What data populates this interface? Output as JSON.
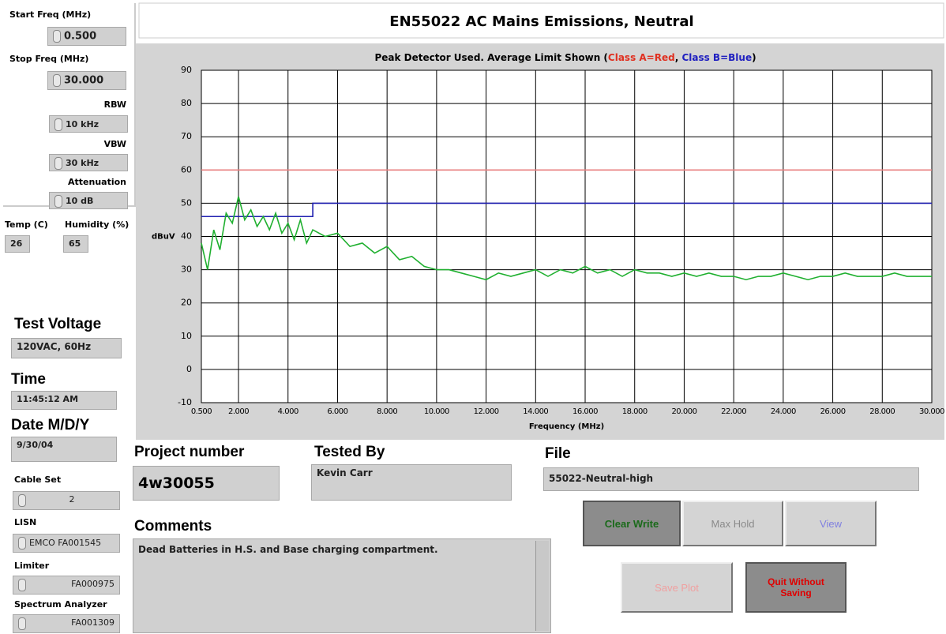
{
  "panel": {
    "start_freq": {
      "label": "Start Freq (MHz)",
      "value": "0.500"
    },
    "stop_freq": {
      "label": "Stop Freq (MHz)",
      "value": "30.000"
    },
    "rbw": {
      "label": "RBW",
      "value": "10 kHz"
    },
    "vbw": {
      "label": "VBW",
      "value": "30 kHz"
    },
    "attenuation": {
      "label": "Attenuation",
      "value": "10 dB"
    },
    "temp": {
      "label": "Temp (C)",
      "value": "26"
    },
    "humidity": {
      "label": "Humidity (%)",
      "value": "65"
    },
    "test_voltage": {
      "label": "Test Voltage",
      "value": "120VAC, 60Hz"
    },
    "time": {
      "label": "Time",
      "value": "11:45:12 AM"
    },
    "date": {
      "label": "Date M/D/Y",
      "value": "9/30/04"
    },
    "cable_set": {
      "label": "Cable Set",
      "value": "2"
    },
    "lisn": {
      "label": "LISN",
      "value": "EMCO FA001545"
    },
    "limiter": {
      "label": "Limiter",
      "value": "FA000975"
    },
    "spectrum_analyzer": {
      "label": "Spectrum Analyzer",
      "value": "FA001309"
    },
    "project_number": {
      "label": "Project number",
      "value": "4w30055"
    },
    "tested_by": {
      "label": "Tested By",
      "value": "Kevin Carr"
    },
    "file": {
      "label": "File",
      "value": "55022-Neutral-high"
    },
    "comments": {
      "label": "Comments",
      "value": "Dead Batteries in H.S. and Base charging compartment."
    },
    "buttons": [
      "Clear Write",
      "Max Hold",
      "View",
      "Save Plot",
      "Quit Without Saving"
    ]
  },
  "chart_data": {
    "type": "line",
    "title": "EN55022 AC Mains Emissions, Neutral",
    "subtitle_parts": [
      {
        "text": "Peak Detector Used. Average Limit Shown (",
        "color": "#000000"
      },
      {
        "text": "Class A=Red",
        "color": "#e03020"
      },
      {
        "text": ", ",
        "color": "#000000"
      },
      {
        "text": "Class B=Blue",
        "color": "#2020c0"
      },
      {
        "text": ")",
        "color": "#000000"
      }
    ],
    "x_label": "Frequency (MHz)",
    "y_label": "dBuV",
    "xlim": [
      0.5,
      30
    ],
    "ylim": [
      -10,
      90
    ],
    "xticks": [
      {
        "value": 0.5,
        "label": "0.500"
      },
      {
        "value": 2,
        "label": "2.000"
      },
      {
        "value": 4,
        "label": "4.000"
      },
      {
        "value": 6,
        "label": "6.000"
      },
      {
        "value": 8,
        "label": "8.000"
      },
      {
        "value": 10,
        "label": "10.000"
      },
      {
        "value": 12,
        "label": "12.000"
      },
      {
        "value": 14,
        "label": "14.000"
      },
      {
        "value": 16,
        "label": "16.000"
      },
      {
        "value": 18,
        "label": "18.000"
      },
      {
        "value": 20,
        "label": "20.000"
      },
      {
        "value": 22,
        "label": "22.000"
      },
      {
        "value": 24,
        "label": "24.000"
      },
      {
        "value": 26,
        "label": "26.000"
      },
      {
        "value": 28,
        "label": "28.000"
      },
      {
        "value": 30,
        "label": "30.000"
      }
    ],
    "yticks": [
      -10,
      0,
      10,
      20,
      30,
      40,
      50,
      60,
      70,
      80,
      90
    ],
    "grid": true,
    "series": [
      {
        "color": "#e88080",
        "x": [
          0.5,
          30
        ],
        "values": [
          60,
          60
        ]
      },
      {
        "color": "#2020b0",
        "x": [
          0.5,
          5,
          5,
          30
        ],
        "values": [
          46,
          46,
          50,
          50
        ]
      },
      {
        "color": "#20b030",
        "x": [
          0.5,
          0.75,
          1,
          1.25,
          1.5,
          1.75,
          2,
          2.25,
          2.5,
          2.75,
          3,
          3.25,
          3.5,
          3.75,
          4,
          4.25,
          4.5,
          4.75,
          5,
          5.5,
          6,
          6.5,
          7,
          7.5,
          8,
          8.5,
          9,
          9.5,
          10,
          10.5,
          11,
          11.5,
          12,
          12.5,
          13,
          13.5,
          14,
          14.5,
          15,
          15.5,
          16,
          16.5,
          17,
          17.5,
          18,
          18.5,
          19,
          19.5,
          20,
          20.5,
          21,
          21.5,
          22,
          22.5,
          23,
          23.5,
          24,
          24.5,
          25,
          25.5,
          26,
          26.5,
          27,
          27.5,
          28,
          28.5,
          29,
          29.5,
          30
        ],
        "values": [
          38,
          30,
          42,
          36,
          47,
          44,
          52,
          45,
          48,
          43,
          46,
          42,
          47,
          41,
          44,
          39,
          45,
          38,
          42,
          40,
          41,
          37,
          38,
          35,
          37,
          33,
          34,
          31,
          30,
          30,
          29,
          28,
          27,
          29,
          28,
          29,
          30,
          28,
          30,
          29,
          31,
          29,
          30,
          28,
          30,
          29,
          29,
          28,
          29,
          28,
          29,
          28,
          28,
          27,
          28,
          28,
          29,
          28,
          27,
          28,
          28,
          29,
          28,
          28,
          28,
          29,
          28,
          28,
          28
        ]
      }
    ]
  }
}
